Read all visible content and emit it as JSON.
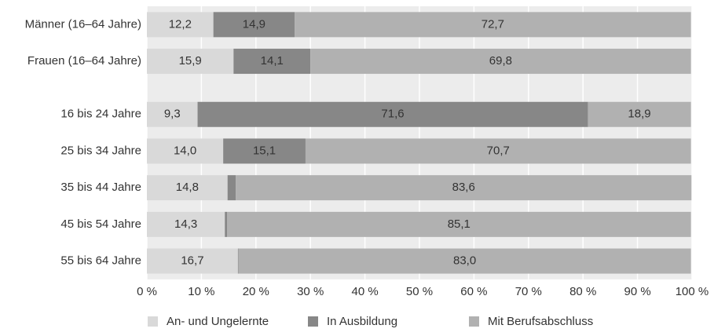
{
  "chart_data": {
    "type": "stacked_bar_horizontal",
    "categories": [
      "Männer (16–64 Jahre)",
      "Frauen (16–64 Jahre)",
      null,
      "16 bis 24 Jahre",
      "25 bis 34 Jahre",
      "35 bis 44 Jahre",
      "45 bis 54 Jahre",
      "55 bis 64 Jahre"
    ],
    "series": [
      {
        "name": "An- und Ungelernte",
        "color": "#d9d9d9",
        "values": [
          12.2,
          15.9,
          null,
          9.3,
          14.0,
          14.8,
          14.3,
          16.7
        ],
        "value_labels": [
          "12,2",
          "15,9",
          null,
          "9,3",
          "14,0",
          "14,8",
          "14,3",
          "16,7"
        ]
      },
      {
        "name": "In Ausbildung",
        "color": "#878787",
        "values": [
          14.9,
          14.1,
          null,
          71.6,
          15.1,
          1.5,
          0.4,
          0.1
        ],
        "value_labels": [
          "14,9",
          "14,1",
          null,
          "71,6",
          "15,1",
          "1,5",
          "0,4",
          "0,1"
        ]
      },
      {
        "name": "Mit Berufsabschluss",
        "color": "#b1b1b1",
        "values": [
          72.7,
          69.8,
          null,
          18.9,
          70.7,
          83.6,
          85.1,
          83.0
        ],
        "value_labels": [
          "72,7",
          "69,8",
          null,
          "18,9",
          "70,7",
          "83,6",
          "85,1",
          "83,0"
        ]
      }
    ],
    "xlim": [
      0,
      100
    ],
    "xticks": [
      {
        "value": 0,
        "label": "0 %"
      },
      {
        "value": 10,
        "label": "10 %"
      },
      {
        "value": 20,
        "label": "20 %"
      },
      {
        "value": 30,
        "label": "30 %"
      },
      {
        "value": 40,
        "label": "40 %"
      },
      {
        "value": 50,
        "label": "50 %"
      },
      {
        "value": 60,
        "label": "60 %"
      },
      {
        "value": 70,
        "label": "70 %"
      },
      {
        "value": 80,
        "label": "80 %"
      },
      {
        "value": 90,
        "label": "90 %"
      },
      {
        "value": 100,
        "label": "100 %"
      }
    ],
    "grid": true
  }
}
